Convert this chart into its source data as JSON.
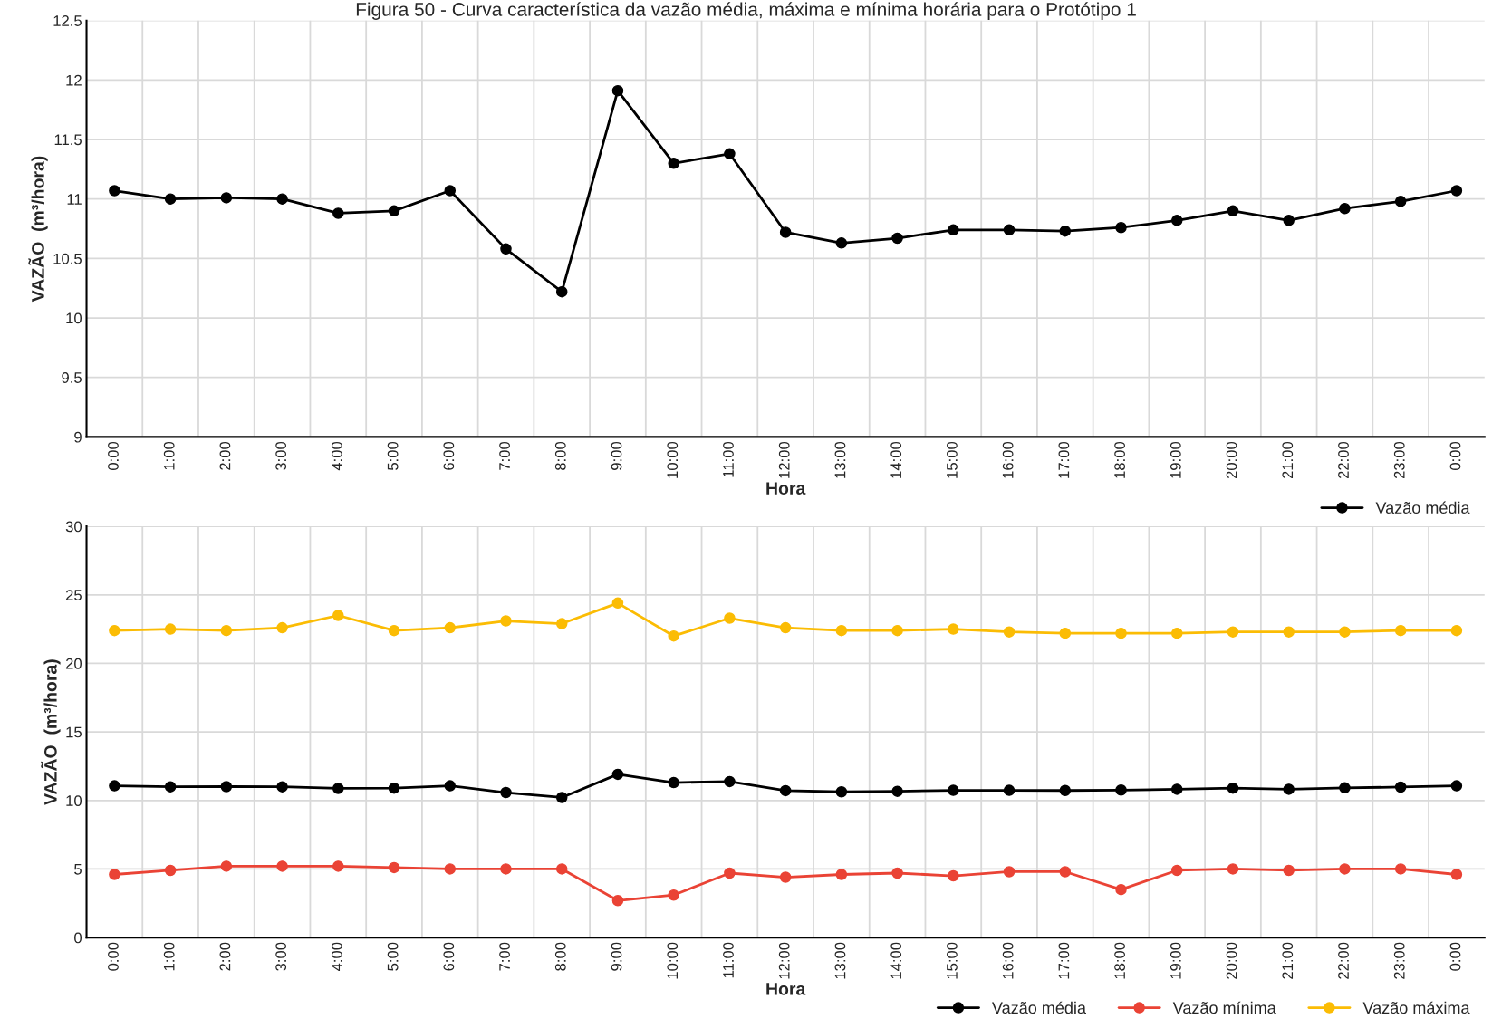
{
  "chart_data": [
    {
      "type": "line",
      "title": "Figura 50 - Curva característica da vazão média, máxima e mínima horária para o Protótipo 1",
      "xlabel": "Hora",
      "ylabel": "VAZÃO  (m³/hora)",
      "categories": [
        "0:00",
        "1:00",
        "2:00",
        "3:00",
        "4:00",
        "5:00",
        "6:00",
        "7:00",
        "8:00",
        "9:00",
        "10:00",
        "11:00",
        "12:00",
        "13:00",
        "14:00",
        "15:00",
        "16:00",
        "17:00",
        "18:00",
        "19:00",
        "20:00",
        "21:00",
        "22:00",
        "23:00",
        "0:00"
      ],
      "series": [
        {
          "name": "Vazão média",
          "color": "#000000",
          "values": [
            11.07,
            11.0,
            11.01,
            11.0,
            10.88,
            10.9,
            11.07,
            10.58,
            10.22,
            11.91,
            11.3,
            11.38,
            10.72,
            10.63,
            10.67,
            10.74,
            10.74,
            10.73,
            10.76,
            10.82,
            10.9,
            10.82,
            10.92,
            10.98,
            11.07
          ]
        }
      ],
      "ylim": [
        9,
        12.5
      ],
      "yticks": [
        9,
        9.5,
        10,
        10.5,
        11,
        11.5,
        12,
        12.5
      ],
      "grid": true,
      "legend": "bottom right",
      "marker": "circle",
      "line_style": "solid"
    },
    {
      "type": "line",
      "xlabel": "Hora",
      "ylabel": "VAZÃO  (m³/hora)",
      "categories": [
        "0:00",
        "1:00",
        "2:00",
        "3:00",
        "4:00",
        "5:00",
        "6:00",
        "7:00",
        "8:00",
        "9:00",
        "10:00",
        "11:00",
        "12:00",
        "13:00",
        "14:00",
        "15:00",
        "16:00",
        "17:00",
        "18:00",
        "19:00",
        "20:00",
        "21:00",
        "22:00",
        "23:00",
        "0:00"
      ],
      "series": [
        {
          "name": "Vazão média",
          "color": "#000000",
          "values": [
            11.07,
            11.0,
            11.01,
            11.0,
            10.88,
            10.9,
            11.07,
            10.58,
            10.22,
            11.91,
            11.3,
            11.38,
            10.72,
            10.63,
            10.67,
            10.74,
            10.74,
            10.73,
            10.76,
            10.82,
            10.9,
            10.82,
            10.92,
            10.98,
            11.07
          ]
        },
        {
          "name": "Vazão mínima",
          "color": "#ea4335",
          "values": [
            4.6,
            4.9,
            5.2,
            5.2,
            5.2,
            5.1,
            5.0,
            5.0,
            5.0,
            2.7,
            3.1,
            4.7,
            4.4,
            4.6,
            4.7,
            4.5,
            4.8,
            4.8,
            3.5,
            4.9,
            5.0,
            4.9,
            5.0,
            5.0,
            4.6
          ]
        },
        {
          "name": "Vazão máxima",
          "color": "#fbbc04",
          "values": [
            22.4,
            22.5,
            22.4,
            22.6,
            23.5,
            22.4,
            22.6,
            23.1,
            22.9,
            24.4,
            22.0,
            23.3,
            22.6,
            22.4,
            22.4,
            22.5,
            22.3,
            22.2,
            22.2,
            22.2,
            22.3,
            22.3,
            22.3,
            22.4,
            22.4
          ]
        }
      ],
      "ylim": [
        0,
        30
      ],
      "yticks": [
        0,
        5,
        10,
        15,
        20,
        25,
        30
      ],
      "grid": true,
      "legend": "bottom right",
      "marker": "circle",
      "line_style": "solid"
    }
  ]
}
